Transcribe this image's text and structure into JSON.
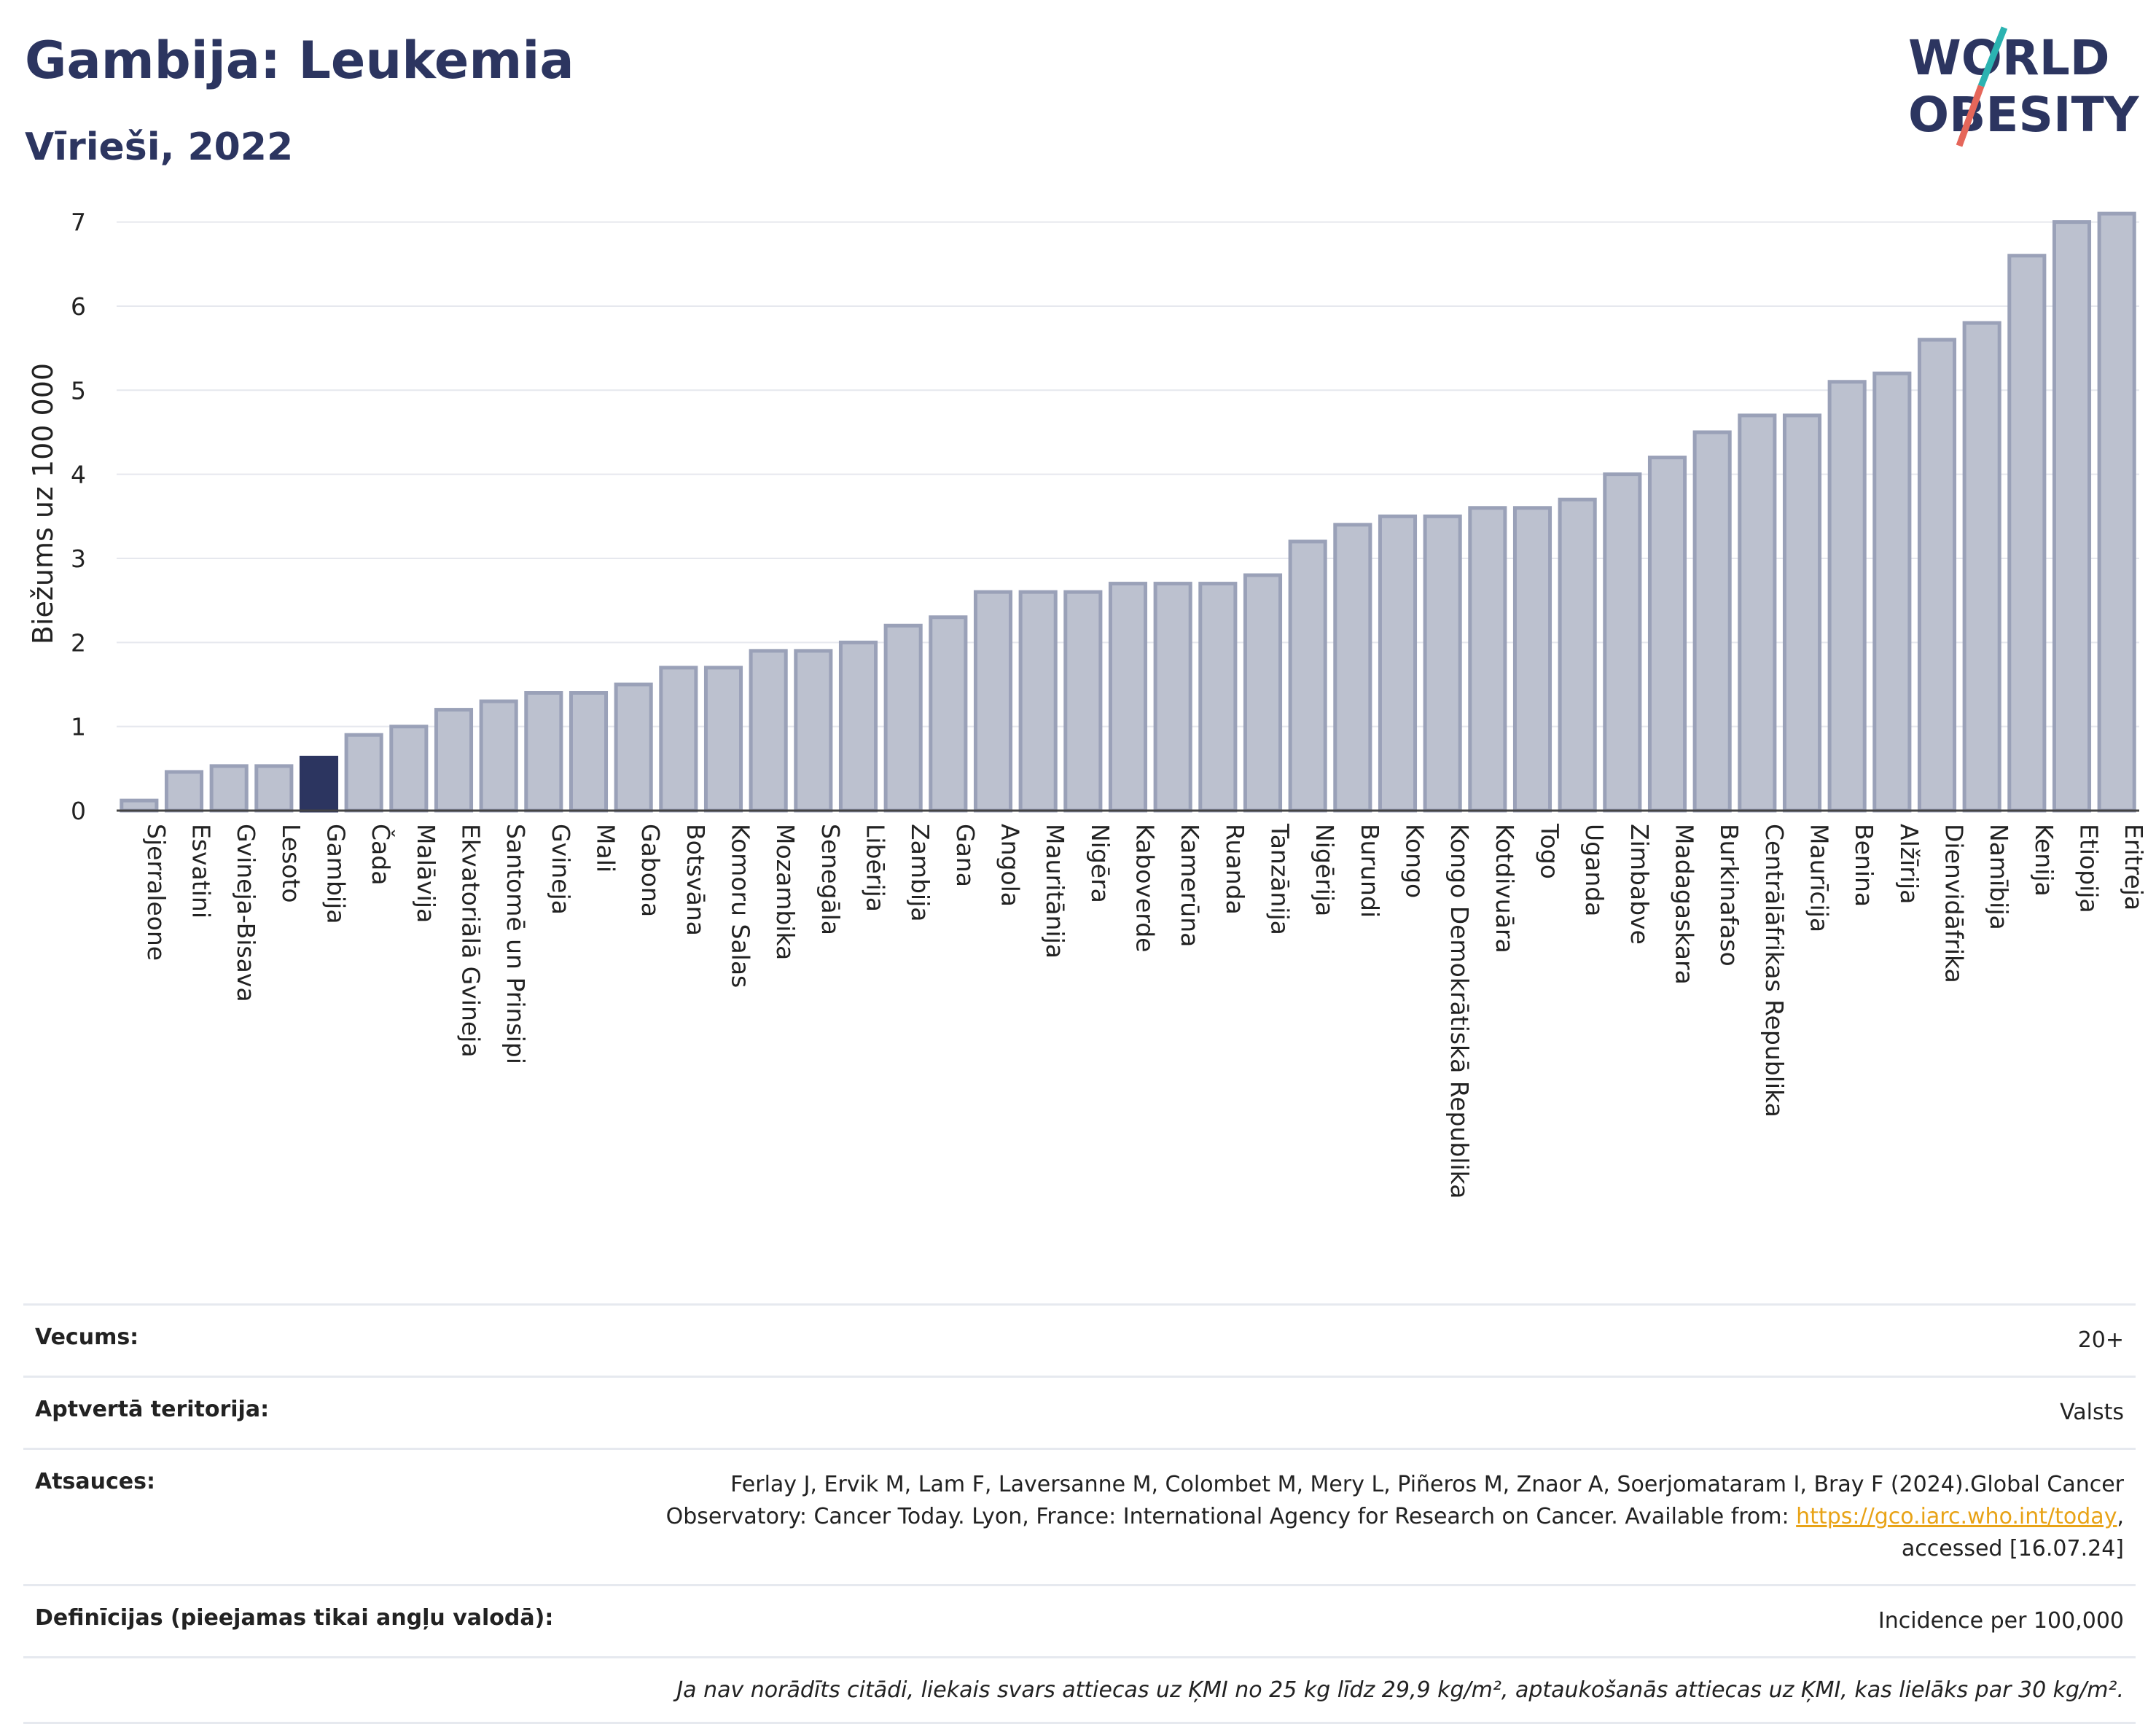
{
  "header": {
    "title": "Gambija: Leukemia",
    "subtitle": "Vīrieši, 2022"
  },
  "logo": {
    "line1": "WORLD",
    "line2": "OBESITY",
    "accent_colors": [
      "#2bb3b1",
      "#e5665a"
    ]
  },
  "colors": {
    "bar": "#bcc1cf",
    "bar_border": "#9aa1b8",
    "highlight": "#2c3560",
    "grid": "#e6e8ee"
  },
  "chart_data": {
    "type": "bar",
    "ylabel": "Biežums uz 100 000",
    "ylim": [
      0,
      7.3
    ],
    "yticks": [
      0,
      1,
      2,
      3,
      4,
      5,
      6,
      7
    ],
    "grid": true,
    "highlight": "Gambija",
    "categories": [
      "Sjerraleone",
      "Esvatini",
      "Gvineja-Bisava",
      "Lesoto",
      "Gambija",
      "Čada",
      "Malāvija",
      "Ekvatoriālā Gvineja",
      "Santomē un Prinsipi",
      "Gvineja",
      "Mali",
      "Gabona",
      "Botsvāna",
      "Komoru Salas",
      "Mozambika",
      "Senegāla",
      "Libērija",
      "Zambija",
      "Gana",
      "Angola",
      "Mauritānija",
      "Nigēra",
      "Kaboverde",
      "Kamerūna",
      "Ruanda",
      "Tanzānija",
      "Nigērija",
      "Burundi",
      "Kongo",
      "Kongo Demokrātiskā Republika",
      "Kotdivuāra",
      "Togo",
      "Uganda",
      "Zimbabve",
      "Madagaskara",
      "Burkinafaso",
      "Centrālāfrikas Republika",
      "Maurīcija",
      "Benina",
      "Alžīrija",
      "Dienvidāfrika",
      "Namībija",
      "Kenija",
      "Etiopija",
      "Eritreja"
    ],
    "values": [
      0.12,
      0.46,
      0.53,
      0.53,
      0.63,
      0.9,
      1.0,
      1.2,
      1.3,
      1.4,
      1.4,
      1.5,
      1.7,
      1.7,
      1.9,
      1.9,
      2.0,
      2.2,
      2.3,
      2.6,
      2.6,
      2.6,
      2.7,
      2.7,
      2.7,
      2.8,
      3.2,
      3.4,
      3.5,
      3.5,
      3.6,
      3.6,
      3.7,
      4.0,
      4.2,
      4.5,
      4.7,
      4.7,
      5.1,
      5.2,
      5.6,
      5.8,
      6.6,
      7.0,
      7.1
    ]
  },
  "meta": {
    "rows": [
      {
        "label": "Vecums:",
        "value": "20+"
      },
      {
        "label": "Aptvertā teritorija:",
        "value": "Valsts"
      },
      {
        "label": "Atsauces:",
        "value_line1": "Ferlay J, Ervik M, Lam F, Laversanne M, Colombet M, Mery L, Piñeros M, Znaor A, Soerjomataram I, Bray F (2024).Global Cancer",
        "value_line2": "Observatory: Cancer Today. Lyon, France: International Agency for Research on Cancer. Available from: ",
        "link": "https://gco.iarc.who.int/today",
        "value_line2_end": ",",
        "value_line3": "accessed [16.07.24]"
      },
      {
        "label": "Definīcijas (pieejamas tikai angļu valodā):",
        "value": "Incidence per 100,000"
      }
    ],
    "note": "Ja nav norādīts citādi, liekais svars attiecas uz ĶMI no 25 kg līdz 29,9 kg/m², aptaukošanās attiecas uz ĶMI, kas lielāks par 30 kg/m²."
  }
}
